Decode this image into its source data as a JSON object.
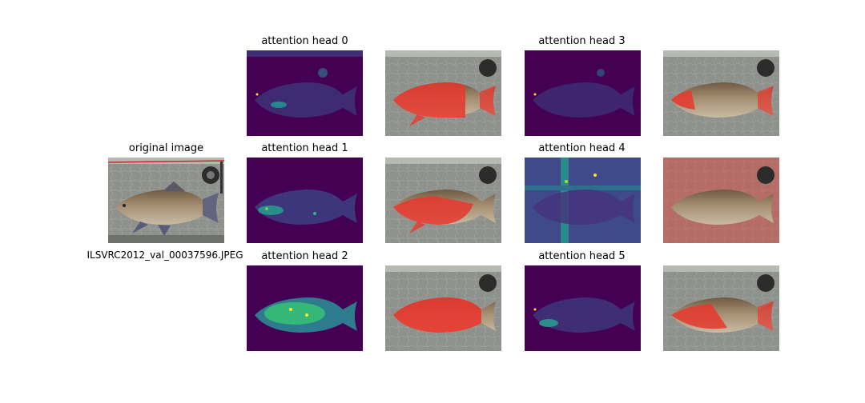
{
  "figure": {
    "original": {
      "title": "original image",
      "caption": "ILSVRC2012_val_00037596.JPEG"
    },
    "heads": [
      {
        "title": "attention head 0"
      },
      {
        "title": "attention head 1"
      },
      {
        "title": "attention head 2"
      },
      {
        "title": "attention head 3"
      },
      {
        "title": "attention head 4"
      },
      {
        "title": "attention head 5"
      }
    ]
  },
  "colors": {
    "heatmap_background": "#440154",
    "heatmap_mid": "#31688e",
    "heatmap_high": "#35b779",
    "heatmap_peak": "#fde725",
    "overlay_red": "#e8372e",
    "fish_body": "#a08a6e",
    "background_mat": "#8c8f8a"
  }
}
